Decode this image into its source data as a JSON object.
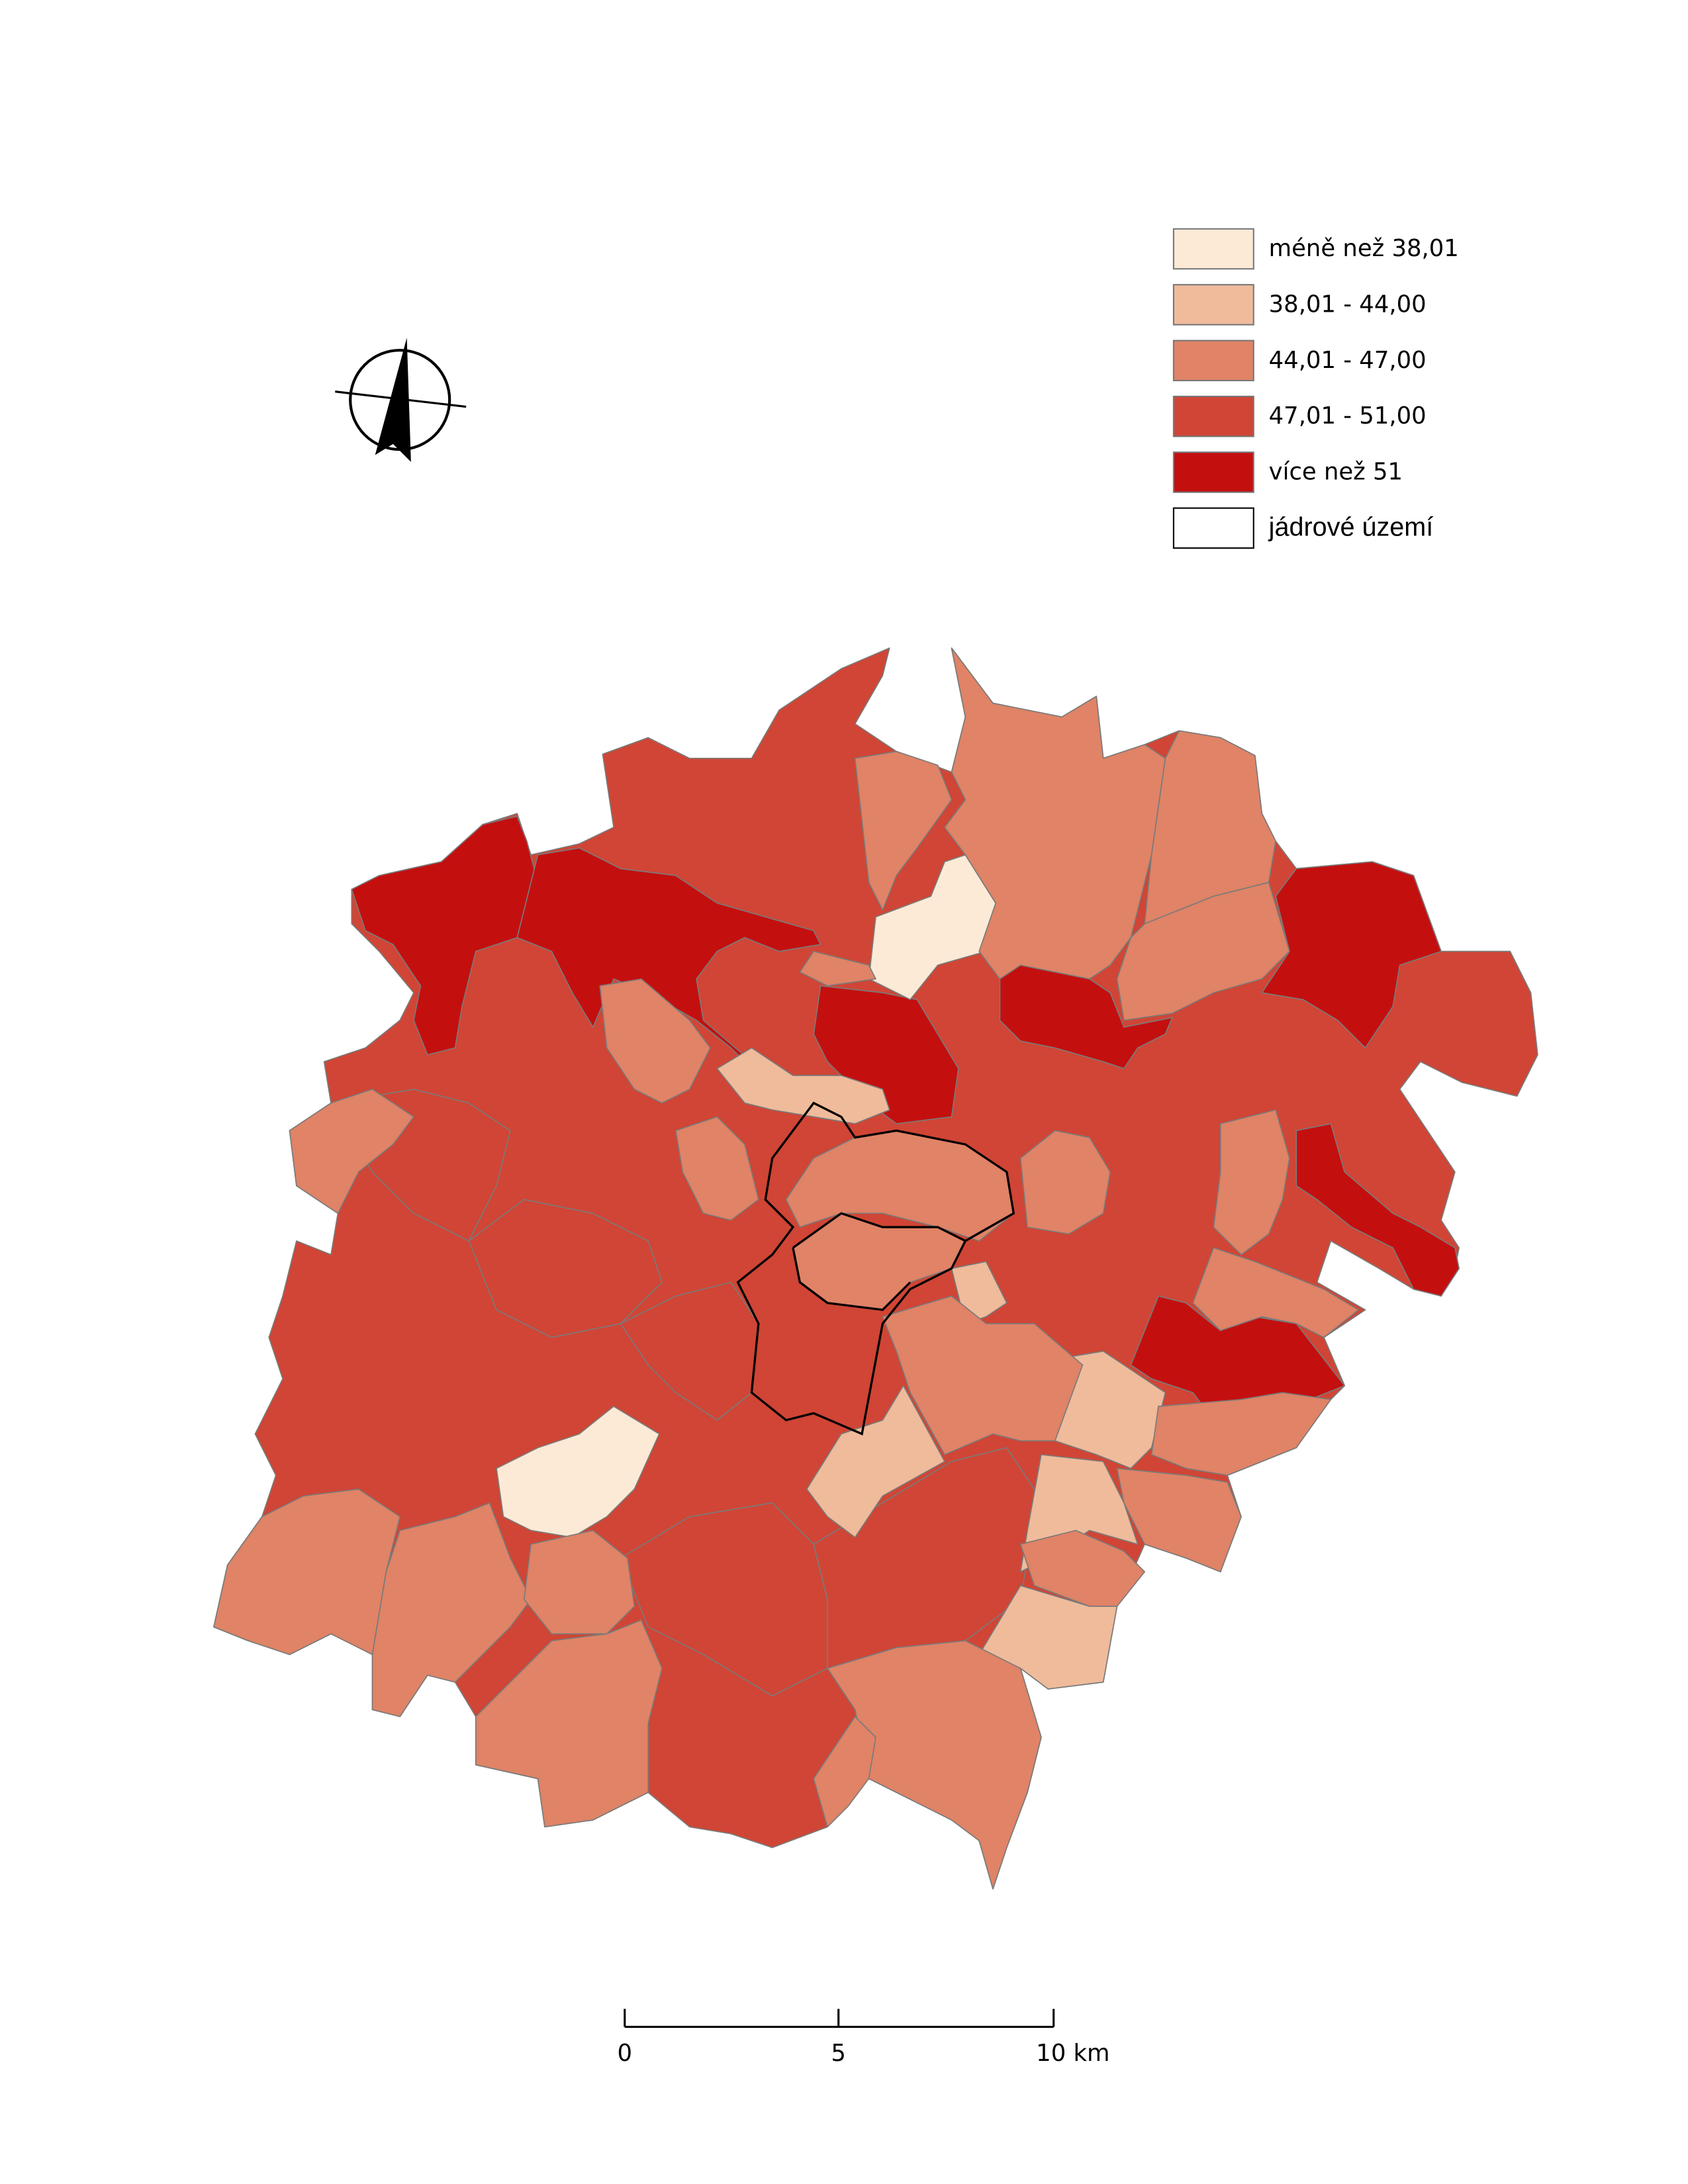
{
  "legend": {
    "items": [
      {
        "label": "méně než 38,01",
        "color": "#fdead6"
      },
      {
        "label": "38,01 - 44,00",
        "color": "#efbb9b"
      },
      {
        "label": "44,01 - 47,00",
        "color": "#e08366"
      },
      {
        "label": "47,01 - 51,00",
        "color": "#d04535"
      },
      {
        "label": "více než 51",
        "color": "#c40f0f"
      },
      {
        "label": "jádrové území",
        "color": "#ffffff"
      }
    ]
  },
  "scale_bar": {
    "labels": [
      "0",
      "5",
      "10 km"
    ]
  }
}
